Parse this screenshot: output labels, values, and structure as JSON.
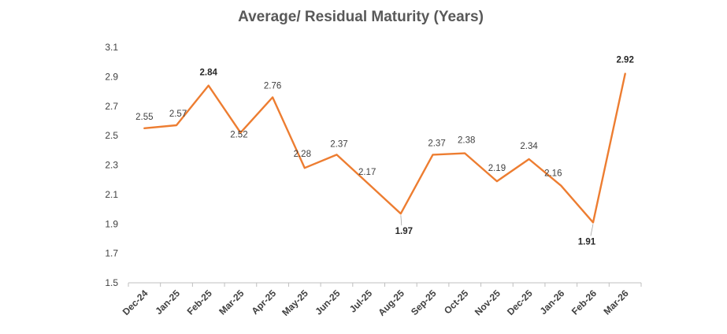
{
  "chart_data": {
    "type": "line",
    "title": "Average/ Residual Maturity (Years)",
    "xlabel": "",
    "ylabel": "",
    "categories": [
      "Dec-24",
      "Jan-25",
      "Feb-25",
      "Mar-25",
      "Apr-25",
      "May-25",
      "Jun-25",
      "Jul-25",
      "Aug-25",
      "Sep-25",
      "Oct-25",
      "Nov-25",
      "Dec-25",
      "Jan-26",
      "Feb-26",
      "Mar-26"
    ],
    "series": [
      {
        "values": [
          2.55,
          2.57,
          2.84,
          2.52,
          2.76,
          2.28,
          2.37,
          2.17,
          1.97,
          2.37,
          2.38,
          2.19,
          2.34,
          2.16,
          1.91,
          2.92
        ],
        "data_labels": [
          "2.55",
          "2.57",
          "2.84",
          "2.52",
          "2.76",
          "2.28",
          "2.37",
          "2.17",
          "1.97",
          "2.37",
          "2.38",
          "2.19",
          "2.34",
          "2.16",
          "1.91",
          "2.92"
        ],
        "bold_labels": [
          2,
          8,
          14,
          15
        ],
        "color": "#ED7D31"
      }
    ],
    "ylim": [
      1.5,
      3.1
    ],
    "yticks": [
      "1.5",
      "1.7",
      "1.9",
      "2.1",
      "2.3",
      "2.5",
      "2.7",
      "2.9",
      "3.1"
    ],
    "grid": false,
    "legend": "none"
  }
}
